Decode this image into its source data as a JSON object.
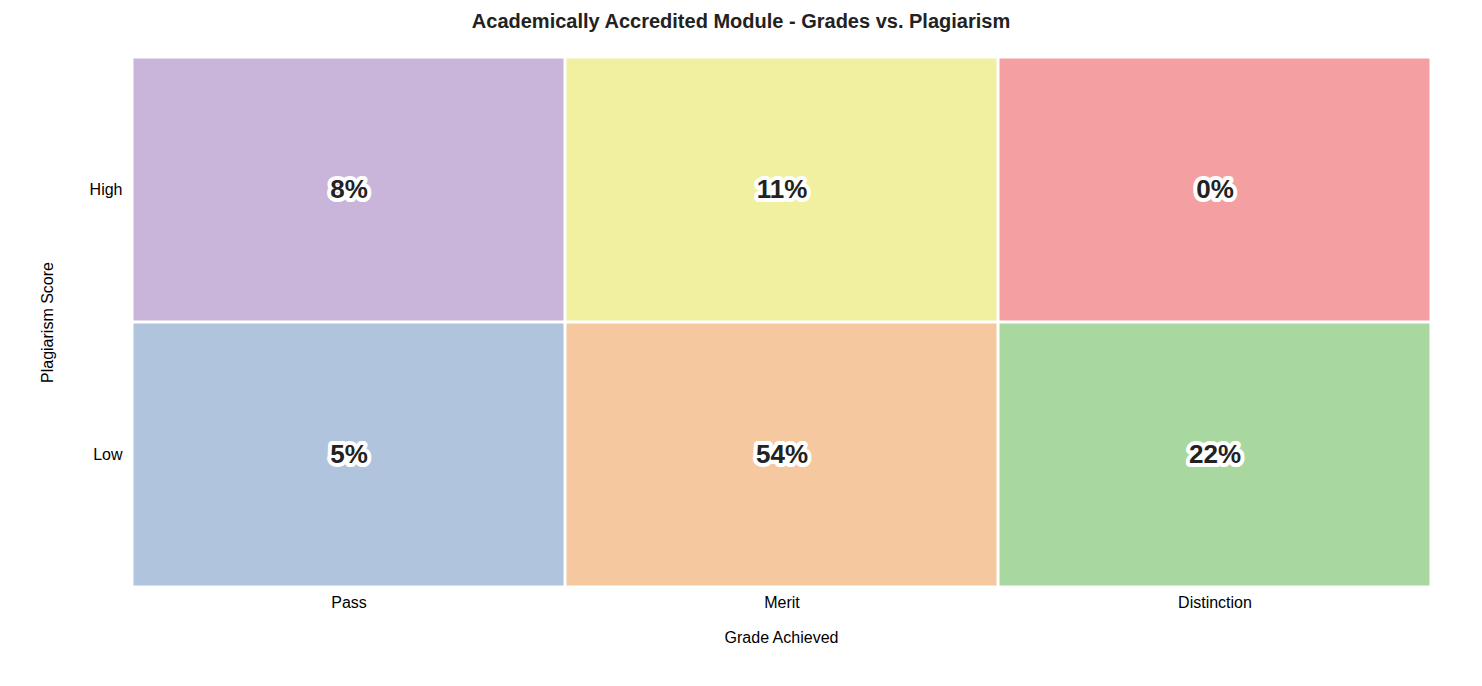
{
  "chart_data": {
    "type": "heatmap",
    "title": "Academically Accredited Module - Grades vs. Plagiarism",
    "xlabel": "Grade Achieved",
    "ylabel": "Plagiarism Score",
    "x": [
      "Pass",
      "Merit",
      "Distinction"
    ],
    "y": [
      "High",
      "Low"
    ],
    "values": [
      [
        8,
        11,
        0
      ],
      [
        5,
        54,
        22
      ]
    ],
    "value_labels": [
      [
        "8%",
        "11%",
        "0%"
      ],
      [
        "5%",
        "54%",
        "22%"
      ]
    ],
    "colors": [
      [
        "#c9b5d9",
        "#f0f0a0",
        "#f4a0a2"
      ],
      [
        "#b0c4de",
        "#f5c8a0",
        "#a8d8a0"
      ]
    ],
    "data_labels": true,
    "grid": false
  }
}
